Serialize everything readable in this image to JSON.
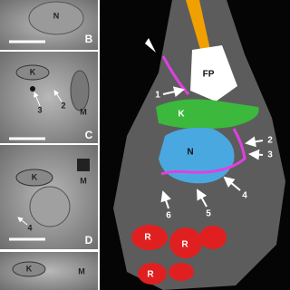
{
  "panels": [
    {
      "letter": "B",
      "labels": [
        "N"
      ]
    },
    {
      "letter": "C",
      "labels": [
        "K",
        "3",
        "2",
        "M"
      ]
    },
    {
      "letter": "D",
      "labels": [
        "K",
        "M",
        "4"
      ]
    },
    {
      "labels": [
        "K",
        "M"
      ]
    }
  ],
  "reconstruction": {
    "structures": [
      "FP",
      "K",
      "N"
    ],
    "markers": [
      "1",
      "2",
      "3",
      "4",
      "5",
      "6"
    ],
    "ribosome_labels": [
      "R",
      "R",
      "R"
    ]
  }
}
